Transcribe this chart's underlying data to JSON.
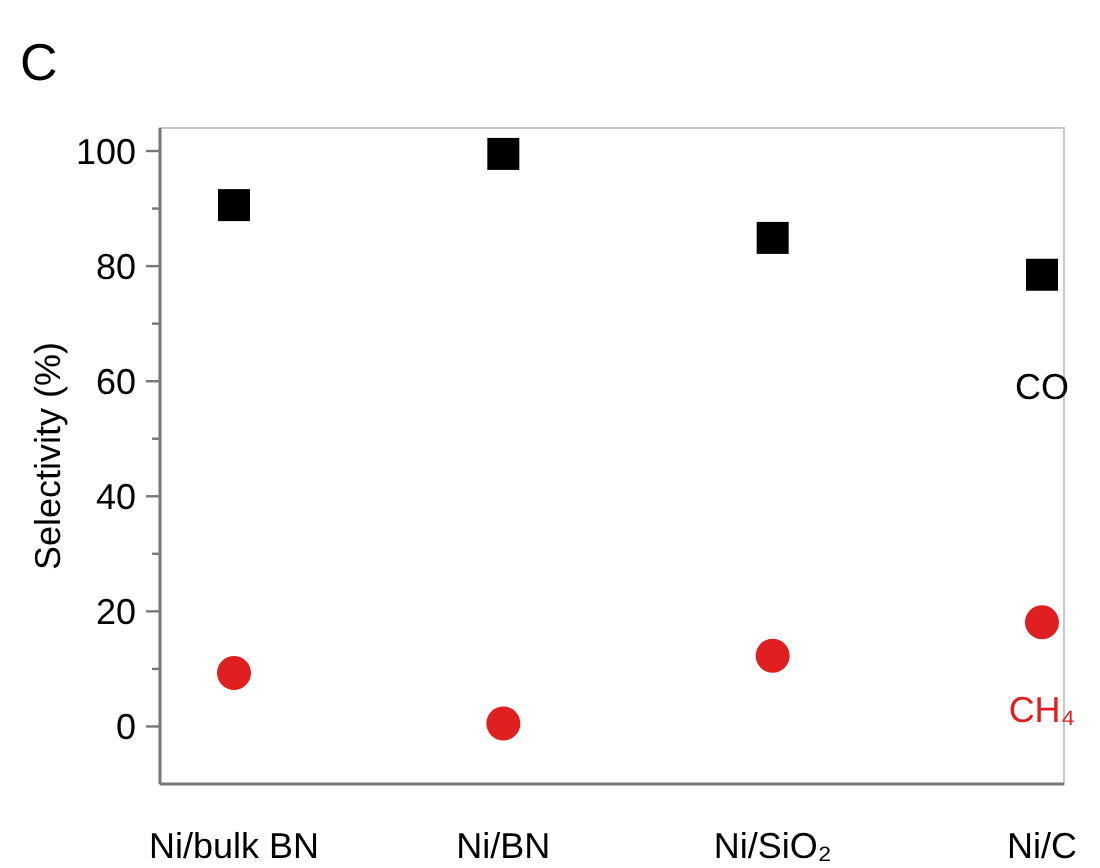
{
  "chart_data": {
    "type": "scatter",
    "ylabel": "Selectivity (%)",
    "annotations": [
      "C"
    ],
    "categories": [
      "Ni/bulk BN",
      "Ni/BN",
      "Ni/SiO₂",
      "Ni/C"
    ],
    "series": [
      {
        "name": "CO",
        "color": "#000000",
        "marker": "square",
        "values": [
          90.6,
          99.5,
          84.9,
          78.5
        ]
      },
      {
        "name": "CH₄",
        "color": "#e02020",
        "marker": "circle",
        "values": [
          9.3,
          0.5,
          12.3,
          18.1
        ]
      }
    ],
    "ylim": [
      -10,
      104
    ],
    "yticks": [
      0,
      {
        "value": 10,
        "label": null
      },
      20,
      {
        "value": 30,
        "label": null
      },
      40,
      {
        "value": 50,
        "label": null
      },
      60,
      {
        "value": 70,
        "label": null
      },
      80,
      {
        "value": 90,
        "label": null
      },
      100
    ],
    "grid": false,
    "legend": false
  }
}
